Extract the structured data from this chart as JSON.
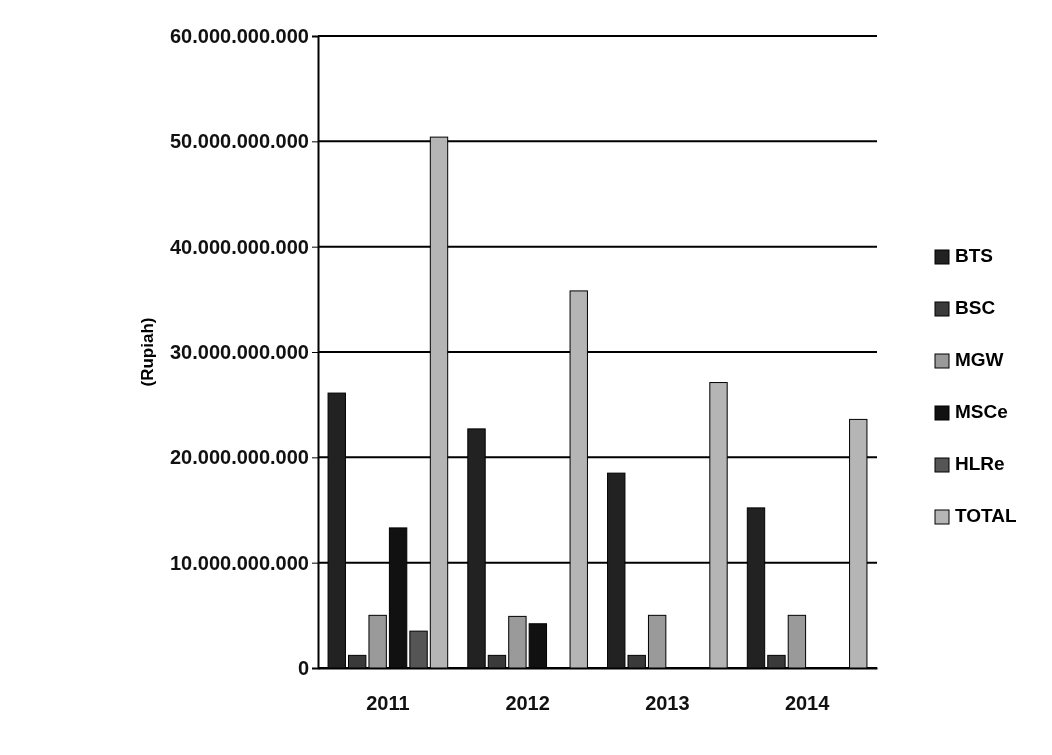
{
  "chart_data": {
    "type": "bar",
    "ylabel": "(Rupiah)",
    "categories": [
      "2011",
      "2012",
      "2013",
      "2014"
    ],
    "series": [
      {
        "name": "BTS",
        "color": "#222222",
        "values": [
          26100000000,
          22700000000,
          18500000000,
          15200000000
        ]
      },
      {
        "name": "BSC",
        "color": "#3a3a3a",
        "values": [
          1200000000,
          1200000000,
          1200000000,
          1200000000
        ]
      },
      {
        "name": "MGW",
        "color": "#9a9a9a",
        "values": [
          5000000000,
          4900000000,
          5000000000,
          5000000000
        ]
      },
      {
        "name": "MSCe",
        "color": "#111111",
        "values": [
          13300000000,
          4200000000,
          null,
          null
        ]
      },
      {
        "name": "HLRe",
        "color": "#555555",
        "values": [
          3500000000,
          null,
          null,
          null
        ]
      },
      {
        "name": "TOTAL",
        "color": "#b5b5b5",
        "values": [
          50400000000,
          35800000000,
          27100000000,
          23600000000
        ]
      }
    ],
    "ylim": [
      0,
      60000000000
    ],
    "yticks": [
      {
        "value": 0,
        "label": "0"
      },
      {
        "value": 10000000000,
        "label": "10.000.000.000"
      },
      {
        "value": 20000000000,
        "label": "20.000.000.000"
      },
      {
        "value": 30000000000,
        "label": "30.000.000.000"
      },
      {
        "value": 40000000000,
        "label": "40.000.000.000"
      },
      {
        "value": 50000000000,
        "label": "50.000.000.000"
      },
      {
        "value": 60000000000,
        "label": "60.000.000.000"
      }
    ],
    "grid": "y",
    "legend": "right"
  }
}
